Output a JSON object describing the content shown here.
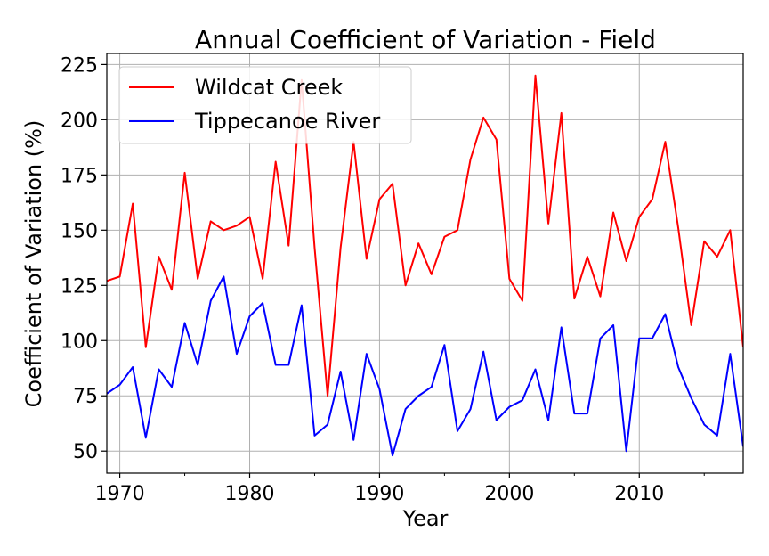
{
  "chart_data": {
    "type": "line",
    "title": "Annual Coefficient of Variation  - Field",
    "xlabel": "Year",
    "ylabel": "Coefficient of Variation (%)",
    "xlim": [
      1969,
      2018
    ],
    "ylim": [
      40,
      230
    ],
    "x_ticks": [
      "1970",
      "1980",
      "1990",
      "2000",
      "2010"
    ],
    "y_ticks": [
      "50",
      "75",
      "100",
      "125",
      "150",
      "175",
      "200",
      "225"
    ],
    "grid": true,
    "legend_position": "top-left",
    "x": [
      1969,
      1970,
      1971,
      1972,
      1973,
      1974,
      1975,
      1976,
      1977,
      1978,
      1979,
      1980,
      1981,
      1982,
      1983,
      1984,
      1985,
      1986,
      1987,
      1988,
      1989,
      1990,
      1991,
      1992,
      1993,
      1994,
      1995,
      1996,
      1997,
      1998,
      1999,
      2000,
      2001,
      2002,
      2003,
      2004,
      2005,
      2006,
      2007,
      2008,
      2009,
      2010,
      2011,
      2012,
      2013,
      2014,
      2015,
      2016,
      2017,
      2018
    ],
    "series": [
      {
        "name": "Wildcat Creek",
        "color": "#ff0000",
        "values": [
          127,
          129,
          162,
          97,
          138,
          123,
          176,
          128,
          154,
          150,
          152,
          156,
          128,
          181,
          143,
          218,
          142,
          75,
          142,
          190,
          137,
          164,
          171,
          125,
          144,
          130,
          147,
          150,
          182,
          201,
          191,
          128,
          118,
          220,
          153,
          203,
          119,
          138,
          120,
          158,
          136,
          156,
          164,
          190,
          151,
          107,
          145,
          138,
          150,
          97
        ]
      },
      {
        "name": "Tippecanoe River",
        "color": "#0000ff",
        "values": [
          76,
          80,
          88,
          56,
          87,
          79,
          108,
          89,
          118,
          129,
          94,
          111,
          117,
          89,
          89,
          116,
          57,
          62,
          86,
          55,
          94,
          78,
          48,
          69,
          75,
          79,
          98,
          59,
          69,
          95,
          64,
          70,
          73,
          87,
          64,
          106,
          67,
          67,
          101,
          107,
          50,
          101,
          101,
          112,
          88,
          74,
          62,
          57,
          94,
          52
        ]
      }
    ]
  }
}
